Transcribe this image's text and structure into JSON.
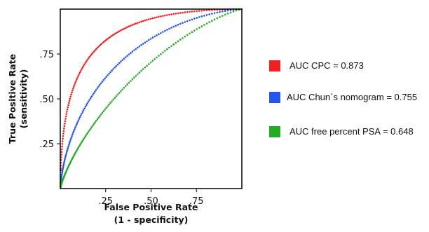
{
  "chart_data": {
    "type": "scatter",
    "xlabel_line1": "False Positive Rate",
    "xlabel_line2": "(1 - specificity)",
    "ylabel_line1": "True Positive Rate",
    "ylabel_line2": "(sensitivity)",
    "xlim": [
      0,
      1
    ],
    "ylim": [
      0,
      1
    ],
    "xticks": [
      {
        "value": 0.25,
        "label": ".25"
      },
      {
        "value": 0.5,
        "label": ".50"
      },
      {
        "value": 0.75,
        "label": ".75"
      }
    ],
    "yticks": [
      {
        "value": 0.25,
        "label": ".25"
      },
      {
        "value": 0.5,
        "label": ".50"
      },
      {
        "value": 0.75,
        "label": ".75"
      }
    ],
    "grid": false,
    "legend_position": "right",
    "series": [
      {
        "name": "AUC CPC = 0.873",
        "color": "#ee2222",
        "auc": 0.873
      },
      {
        "name": "AUC Chun´s nomogram = 0.755",
        "color": "#2255ee",
        "auc": 0.755
      },
      {
        "name": "AUC free percent PSA = 0.648",
        "color": "#22aa22",
        "auc": 0.648
      }
    ]
  }
}
